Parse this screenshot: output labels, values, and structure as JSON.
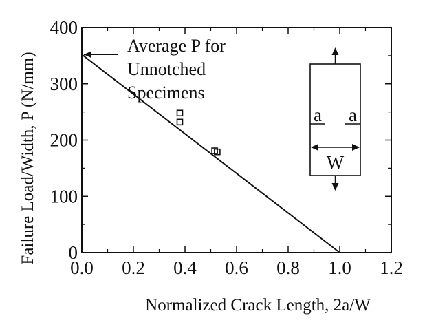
{
  "chart_data": {
    "type": "scatter",
    "xlabel": "Normalized Crack Length, 2a/W",
    "ylabel": "Failure Load/Width, P (N/mm)",
    "xlim": [
      0.0,
      1.2
    ],
    "ylim": [
      0,
      400
    ],
    "x_ticks": [
      "0.0",
      "0.2",
      "0.4",
      "0.6",
      "0.8",
      "1.0",
      "1.2"
    ],
    "y_ticks": [
      "0",
      "100",
      "200",
      "300",
      "400"
    ],
    "grid": false,
    "series": [
      {
        "type": "scatter",
        "marker": "open-square",
        "points": [
          {
            "x": 0.38,
            "y": 248
          },
          {
            "x": 0.38,
            "y": 232
          },
          {
            "x": 0.515,
            "y": 181
          },
          {
            "x": 0.525,
            "y": 179
          }
        ]
      },
      {
        "type": "line",
        "points": [
          {
            "x": 0.0,
            "y": 352
          },
          {
            "x": 1.0,
            "y": 0
          }
        ]
      }
    ],
    "annotation": {
      "lines": [
        "Average P for",
        "Unnotched",
        "Specimens"
      ],
      "arrow_target": {
        "x": 0.0,
        "y": 352
      }
    },
    "inset": {
      "crack_label_left": "a",
      "crack_label_right": "a",
      "width_label": "W"
    }
  }
}
